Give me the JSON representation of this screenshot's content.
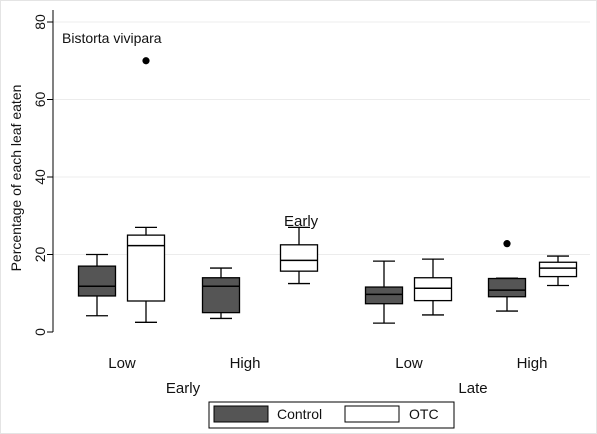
{
  "chart_data": {
    "type": "box",
    "panel_label": "Bistorta vivipara",
    "annotation": "Early",
    "ylabel": "Percentage of each leaf eaten",
    "ylim": [
      0,
      80
    ],
    "yticks": [
      "0",
      "20",
      "40",
      "60",
      "80"
    ],
    "groups": [
      {
        "label": "Early",
        "subgroups": [
          "Low",
          "High"
        ]
      },
      {
        "label": "Late",
        "subgroups": [
          "Low",
          "High"
        ]
      }
    ],
    "series": [
      {
        "name": "Control",
        "color": "#555555",
        "boxes": [
          {
            "min": 4.2,
            "q1": 9.3,
            "median": 11.8,
            "q3": 17.0,
            "max": 20.0,
            "outliers": []
          },
          {
            "min": 3.5,
            "q1": 5.0,
            "median": 11.8,
            "q3": 14.0,
            "max": 16.5,
            "outliers": []
          },
          {
            "min": 2.3,
            "q1": 7.3,
            "median": 9.7,
            "q3": 11.6,
            "max": 18.3,
            "outliers": []
          },
          {
            "min": 5.4,
            "q1": 9.1,
            "median": 10.8,
            "q3": 13.8,
            "max": 13.9,
            "outliers": [
              22.8
            ]
          }
        ]
      },
      {
        "name": "OTC",
        "color": "#ffffff",
        "boxes": [
          {
            "min": 2.5,
            "q1": 8.0,
            "median": 22.3,
            "q3": 25.0,
            "max": 27.0,
            "outliers": [
              70.0
            ]
          },
          {
            "min": 12.5,
            "q1": 15.7,
            "median": 18.5,
            "q3": 22.5,
            "max": 27.0,
            "outliers": []
          },
          {
            "min": 4.4,
            "q1": 8.1,
            "median": 11.3,
            "q3": 14.0,
            "max": 18.8,
            "outliers": []
          },
          {
            "min": 12.0,
            "q1": 14.3,
            "median": 16.5,
            "q3": 18.0,
            "max": 19.6,
            "outliers": []
          }
        ]
      }
    ],
    "legend": {
      "position": "bottom",
      "entries": [
        "Control",
        "OTC"
      ]
    }
  }
}
